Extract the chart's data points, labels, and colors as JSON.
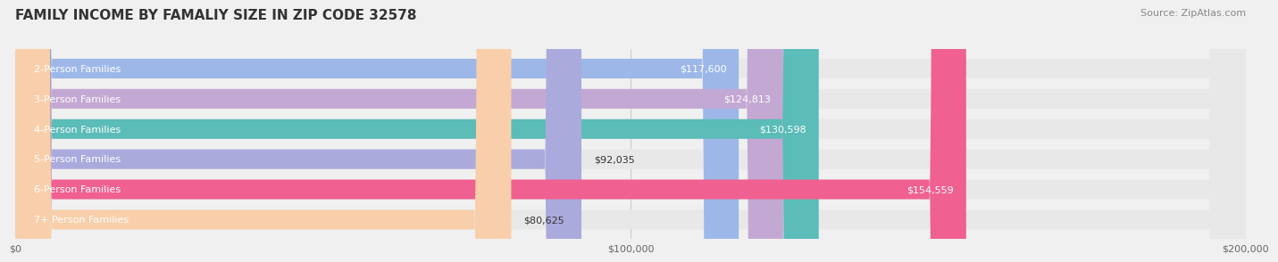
{
  "title": "FAMILY INCOME BY FAMALIY SIZE IN ZIP CODE 32578",
  "source": "Source: ZipAtlas.com",
  "categories": [
    "2-Person Families",
    "3-Person Families",
    "4-Person Families",
    "5-Person Families",
    "6-Person Families",
    "7+ Person Families"
  ],
  "values": [
    117600,
    124813,
    130598,
    92035,
    154559,
    80625
  ],
  "bar_colors": [
    "#9DB8E8",
    "#C4A8D4",
    "#5BBCB8",
    "#AAAADD",
    "#F06090",
    "#F8CFAA"
  ],
  "xlim": [
    0,
    200000
  ],
  "xticks": [
    0,
    100000,
    200000
  ],
  "xtick_labels": [
    "$0",
    "$100,000",
    "$200,000"
  ],
  "bar_height": 0.65,
  "background_color": "#f0f0f0",
  "bar_background_color": "#e8e8e8",
  "title_fontsize": 11,
  "source_fontsize": 8,
  "label_fontsize": 8,
  "value_fontsize": 8
}
